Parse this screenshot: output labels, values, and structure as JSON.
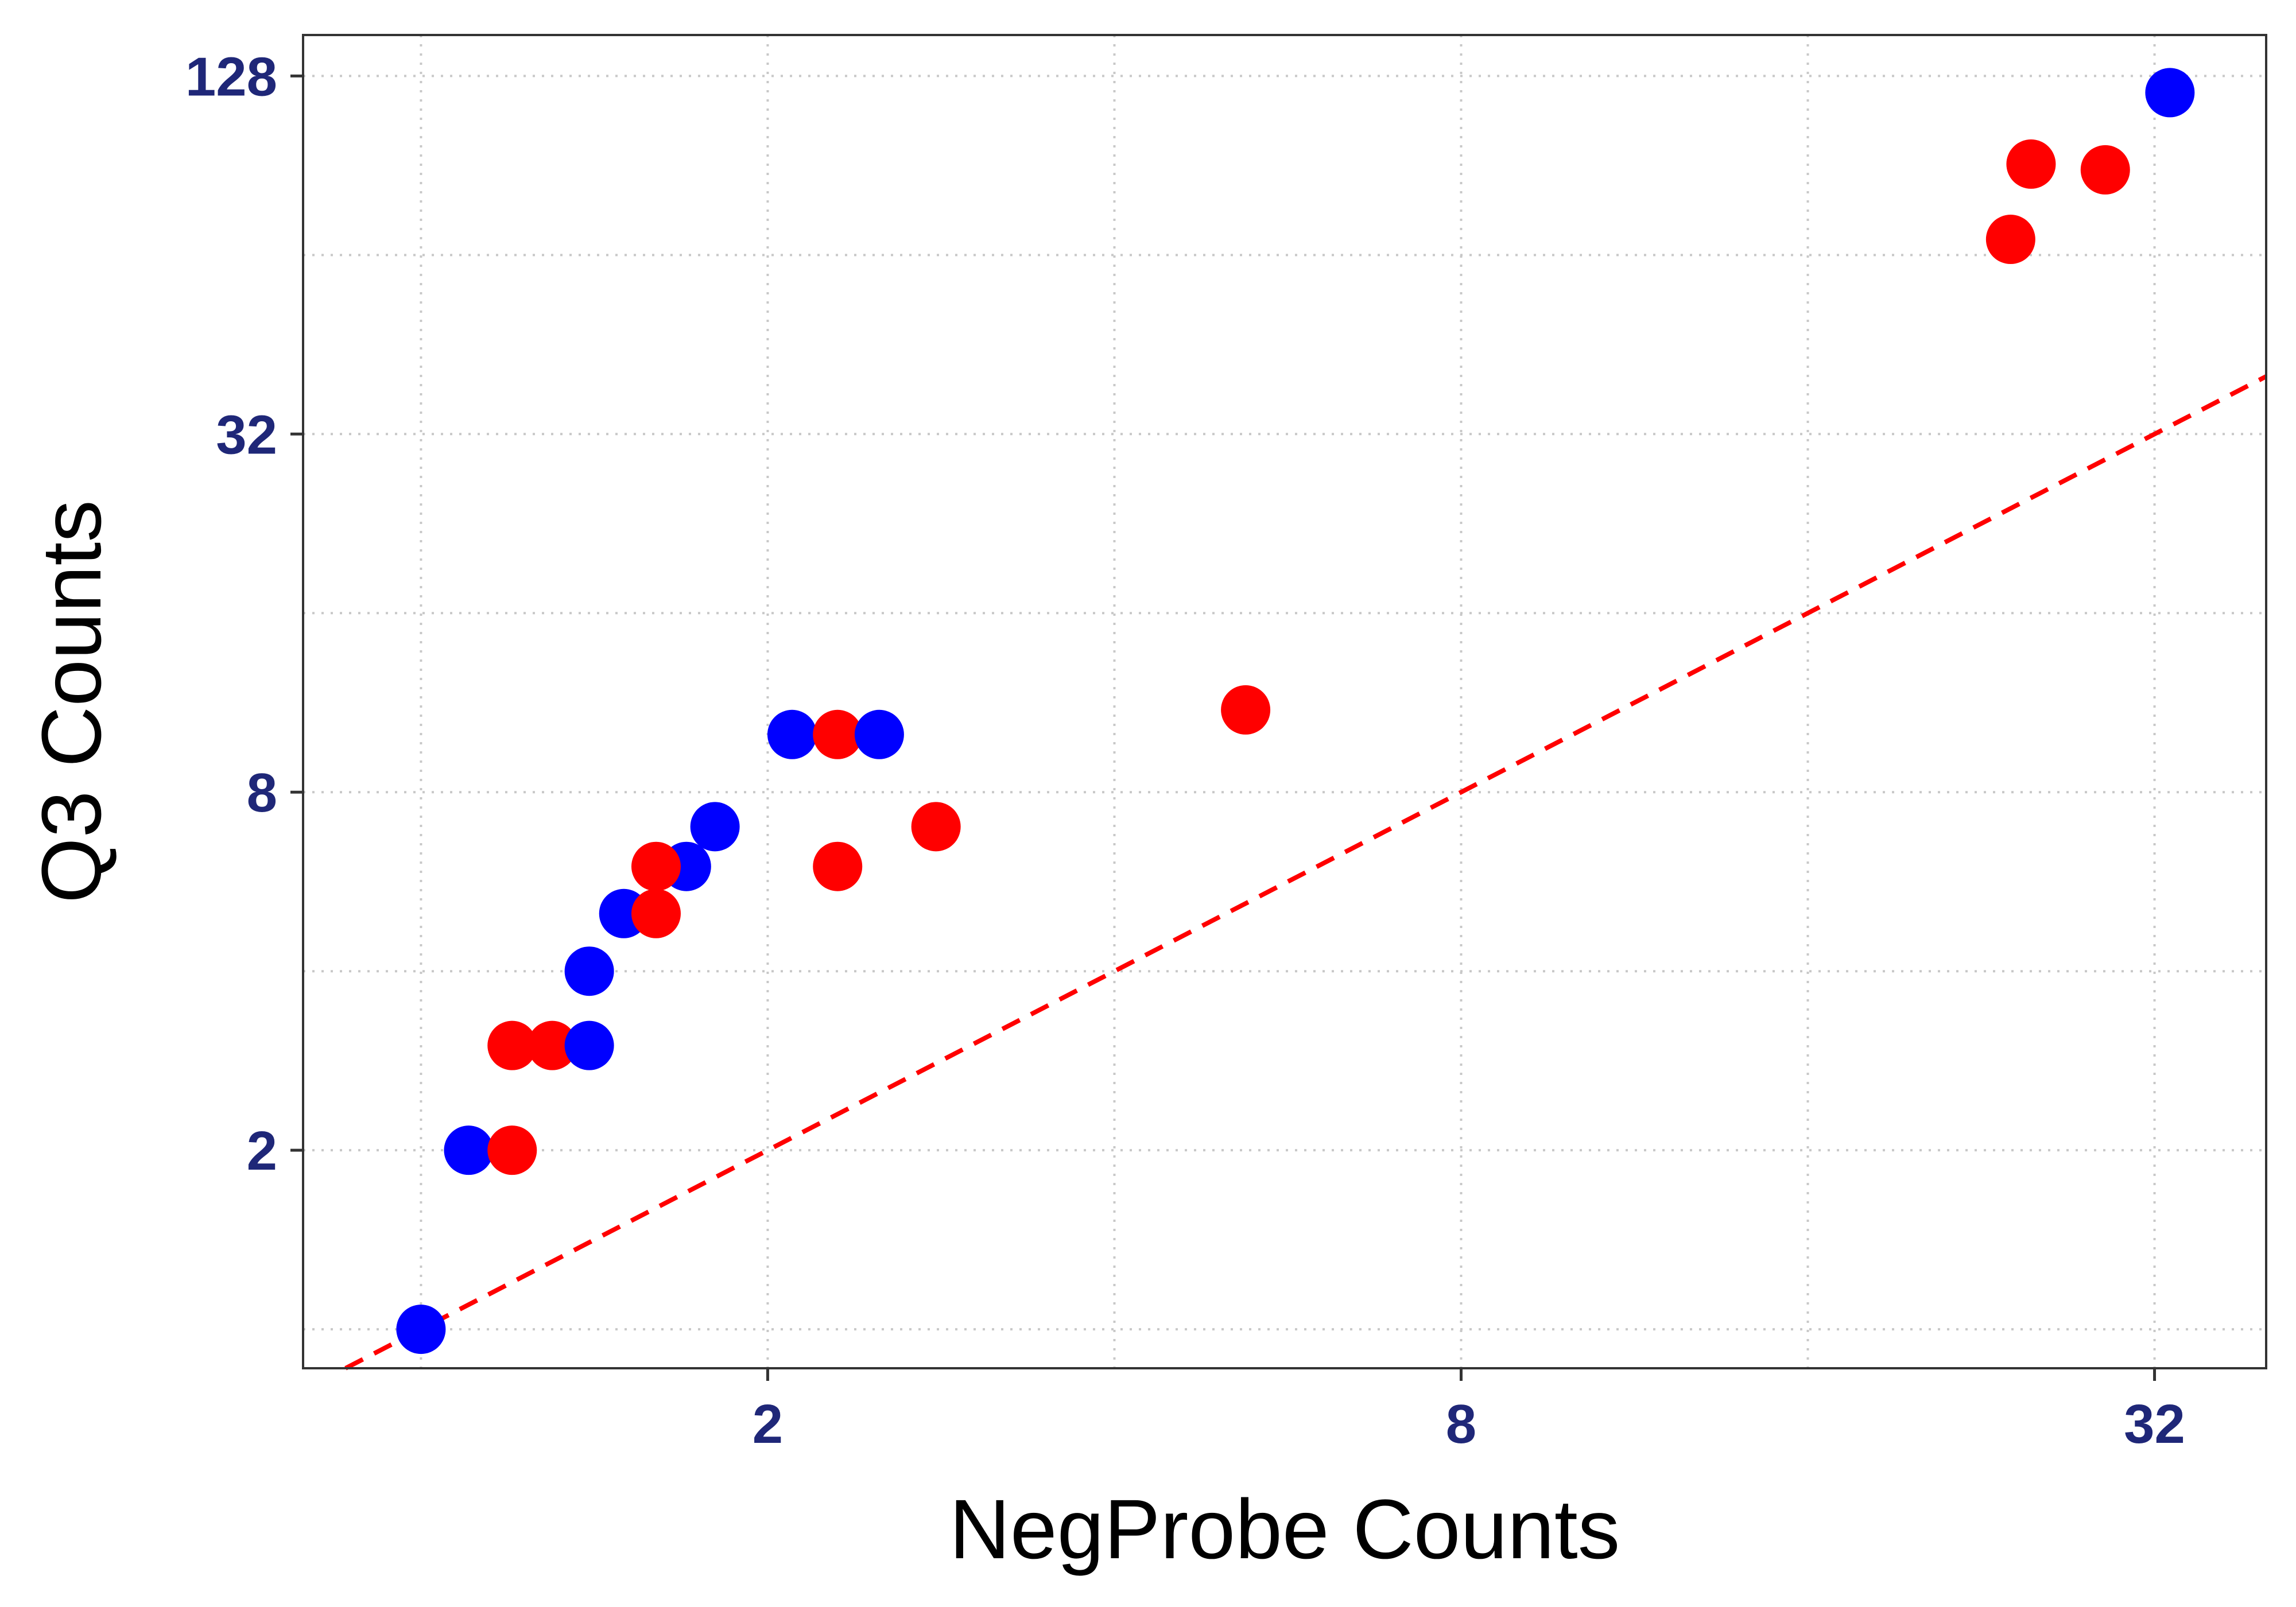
{
  "chart_data": {
    "type": "scatter",
    "title": "",
    "xlabel": "NegProbe Counts",
    "ylabel": "Q3 Counts",
    "x_scale": "log2",
    "y_scale": "log2",
    "xlim": [
      0.79,
      40
    ],
    "ylim": [
      0.86,
      150
    ],
    "x_ticks": [
      2,
      8,
      32
    ],
    "y_ticks": [
      2,
      8,
      32,
      128
    ],
    "x_tick_labels": [
      "2",
      "8",
      "32"
    ],
    "y_tick_labels": [
      "2",
      "8",
      "32",
      "128"
    ],
    "grid": true,
    "legend": "none",
    "reference_line": {
      "type": "identity",
      "slope": 1,
      "color": "#ff0000",
      "style": "dashed"
    },
    "points": [
      {
        "x": 1.0,
        "y": 1.0,
        "color": "#0000ff"
      },
      {
        "x": 1.1,
        "y": 2.0,
        "color": "#0000ff"
      },
      {
        "x": 1.2,
        "y": 2.0,
        "color": "#ff0000"
      },
      {
        "x": 1.2,
        "y": 3.0,
        "color": "#ff0000"
      },
      {
        "x": 1.3,
        "y": 3.0,
        "color": "#ff0000"
      },
      {
        "x": 1.4,
        "y": 3.0,
        "color": "#0000ff"
      },
      {
        "x": 1.4,
        "y": 4.0,
        "color": "#0000ff"
      },
      {
        "x": 1.5,
        "y": 5.0,
        "color": "#0000ff"
      },
      {
        "x": 1.6,
        "y": 5.0,
        "color": "#ff0000"
      },
      {
        "x": 1.7,
        "y": 6.0,
        "color": "#0000ff"
      },
      {
        "x": 1.6,
        "y": 6.0,
        "color": "#ff0000"
      },
      {
        "x": 1.8,
        "y": 7.0,
        "color": "#0000ff"
      },
      {
        "x": 2.1,
        "y": 10.0,
        "color": "#0000ff"
      },
      {
        "x": 2.3,
        "y": 10.0,
        "color": "#ff0000"
      },
      {
        "x": 2.5,
        "y": 10.0,
        "color": "#0000ff"
      },
      {
        "x": 2.3,
        "y": 6.0,
        "color": "#ff0000"
      },
      {
        "x": 2.8,
        "y": 7.0,
        "color": "#ff0000"
      },
      {
        "x": 5.2,
        "y": 11.0,
        "color": "#ff0000"
      },
      {
        "x": 24.0,
        "y": 68.0,
        "color": "#ff0000"
      },
      {
        "x": 25.0,
        "y": 91.0,
        "color": "#ff0000"
      },
      {
        "x": 29.0,
        "y": 89.0,
        "color": "#ff0000"
      },
      {
        "x": 33.0,
        "y": 120.0,
        "color": "#0000ff"
      }
    ]
  },
  "colors": {
    "tick_label": "#1f2778",
    "axis_title": "#000000",
    "grid": "#c8c8c8",
    "frame": "#333333",
    "reference_line": "#ff0000"
  }
}
